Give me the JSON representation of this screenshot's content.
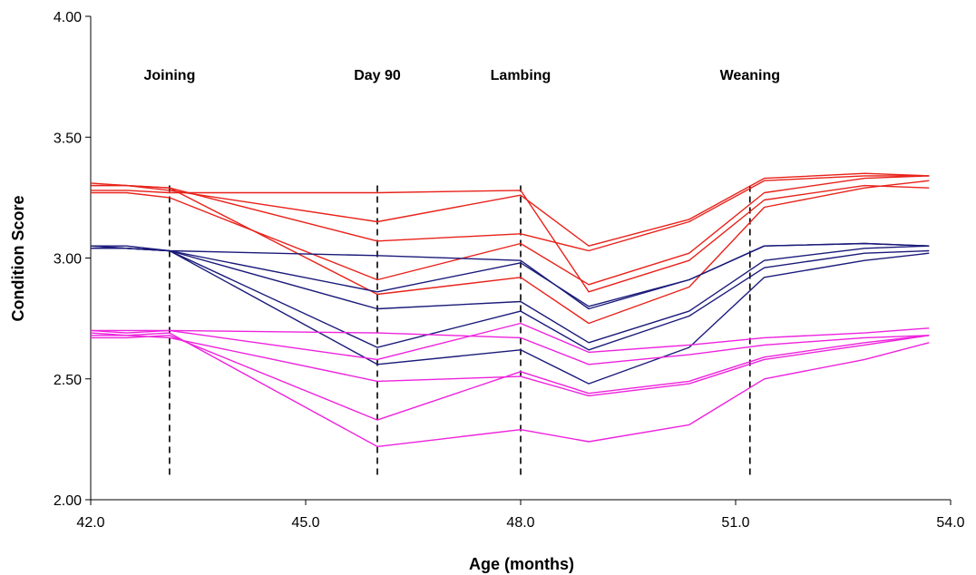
{
  "chart_data": {
    "type": "line",
    "title": "",
    "xlabel": "Age (months)",
    "ylabel": "Condition Score",
    "xlim": [
      42.0,
      54.0
    ],
    "ylim": [
      2.0,
      4.0
    ],
    "x_ticks": [
      42.0,
      45.0,
      48.0,
      51.0,
      54.0
    ],
    "x_tick_labels": [
      "42.0",
      "45.0",
      "48.0",
      "51.0",
      "54.0"
    ],
    "y_ticks": [
      2.0,
      2.5,
      3.0,
      3.5,
      4.0
    ],
    "y_tick_labels": [
      "2.00",
      "2.50",
      "3.00",
      "3.50",
      "4.00"
    ],
    "grid": false,
    "legend": "none",
    "events": [
      {
        "label": "Joining",
        "x": 43.1,
        "y_from": 2.1,
        "y_to": 3.3
      },
      {
        "label": "Day 90",
        "x": 46.0,
        "y_from": 2.1,
        "y_to": 3.3
      },
      {
        "label": "Lambing",
        "x": 48.0,
        "y_from": 2.1,
        "y_to": 3.3
      },
      {
        "label": "Weaning",
        "x": 51.2,
        "y_from": 2.1,
        "y_to": 3.3
      }
    ],
    "x": [
      42.0,
      42.5,
      43.1,
      46.0,
      48.0,
      48.95,
      50.35,
      51.4,
      52.8,
      53.7
    ],
    "series": [
      {
        "color": "#e8221a",
        "values": [
          3.31,
          3.3,
          3.28,
          3.15,
          3.26,
          3.05,
          3.16,
          3.33,
          3.35,
          3.34
        ]
      },
      {
        "color": "#e8221a",
        "values": [
          3.3,
          3.3,
          3.29,
          3.07,
          3.1,
          3.03,
          3.15,
          3.32,
          3.34,
          3.34
        ]
      },
      {
        "color": "#e8221a",
        "values": [
          3.27,
          3.27,
          3.25,
          2.91,
          3.06,
          2.89,
          3.02,
          3.27,
          3.33,
          3.34
        ]
      },
      {
        "color": "#e8221a",
        "values": [
          3.28,
          3.28,
          3.27,
          3.27,
          3.28,
          2.86,
          2.99,
          3.24,
          3.3,
          3.29
        ]
      },
      {
        "color": "#e8221a",
        "values": [
          3.3,
          3.3,
          3.29,
          2.85,
          2.92,
          2.73,
          2.88,
          3.21,
          3.29,
          3.32
        ]
      },
      {
        "color": "#1a1a7a",
        "values": [
          3.05,
          3.04,
          3.03,
          2.86,
          2.98,
          2.8,
          2.91,
          3.05,
          3.06,
          3.05
        ]
      },
      {
        "color": "#1a1a7a",
        "values": [
          3.04,
          3.04,
          3.03,
          3.01,
          2.99,
          2.79,
          2.91,
          3.05,
          3.06,
          3.05
        ]
      },
      {
        "color": "#1a1a7a",
        "values": [
          3.04,
          3.04,
          3.03,
          2.79,
          2.82,
          2.65,
          2.78,
          2.99,
          3.04,
          3.05
        ]
      },
      {
        "color": "#1a1a7a",
        "values": [
          3.05,
          3.04,
          3.03,
          2.63,
          2.78,
          2.62,
          2.76,
          2.96,
          3.02,
          3.03
        ]
      },
      {
        "color": "#1a1a7a",
        "values": [
          3.05,
          3.05,
          3.03,
          2.56,
          2.62,
          2.48,
          2.63,
          2.92,
          2.99,
          3.02
        ]
      },
      {
        "color": "#ee22dd",
        "values": [
          2.7,
          2.7,
          2.7,
          2.58,
          2.73,
          2.61,
          2.64,
          2.67,
          2.69,
          2.71
        ]
      },
      {
        "color": "#ee22dd",
        "values": [
          2.7,
          2.69,
          2.7,
          2.69,
          2.67,
          2.56,
          2.6,
          2.64,
          2.67,
          2.68
        ]
      },
      {
        "color": "#ee22dd",
        "values": [
          2.69,
          2.68,
          2.67,
          2.49,
          2.51,
          2.43,
          2.48,
          2.58,
          2.64,
          2.68
        ]
      },
      {
        "color": "#ee22dd",
        "values": [
          2.67,
          2.67,
          2.68,
          2.33,
          2.53,
          2.44,
          2.49,
          2.59,
          2.65,
          2.68
        ]
      },
      {
        "color": "#ee22dd",
        "values": [
          2.68,
          2.68,
          2.69,
          2.22,
          2.29,
          2.24,
          2.31,
          2.5,
          2.58,
          2.65
        ]
      }
    ]
  }
}
